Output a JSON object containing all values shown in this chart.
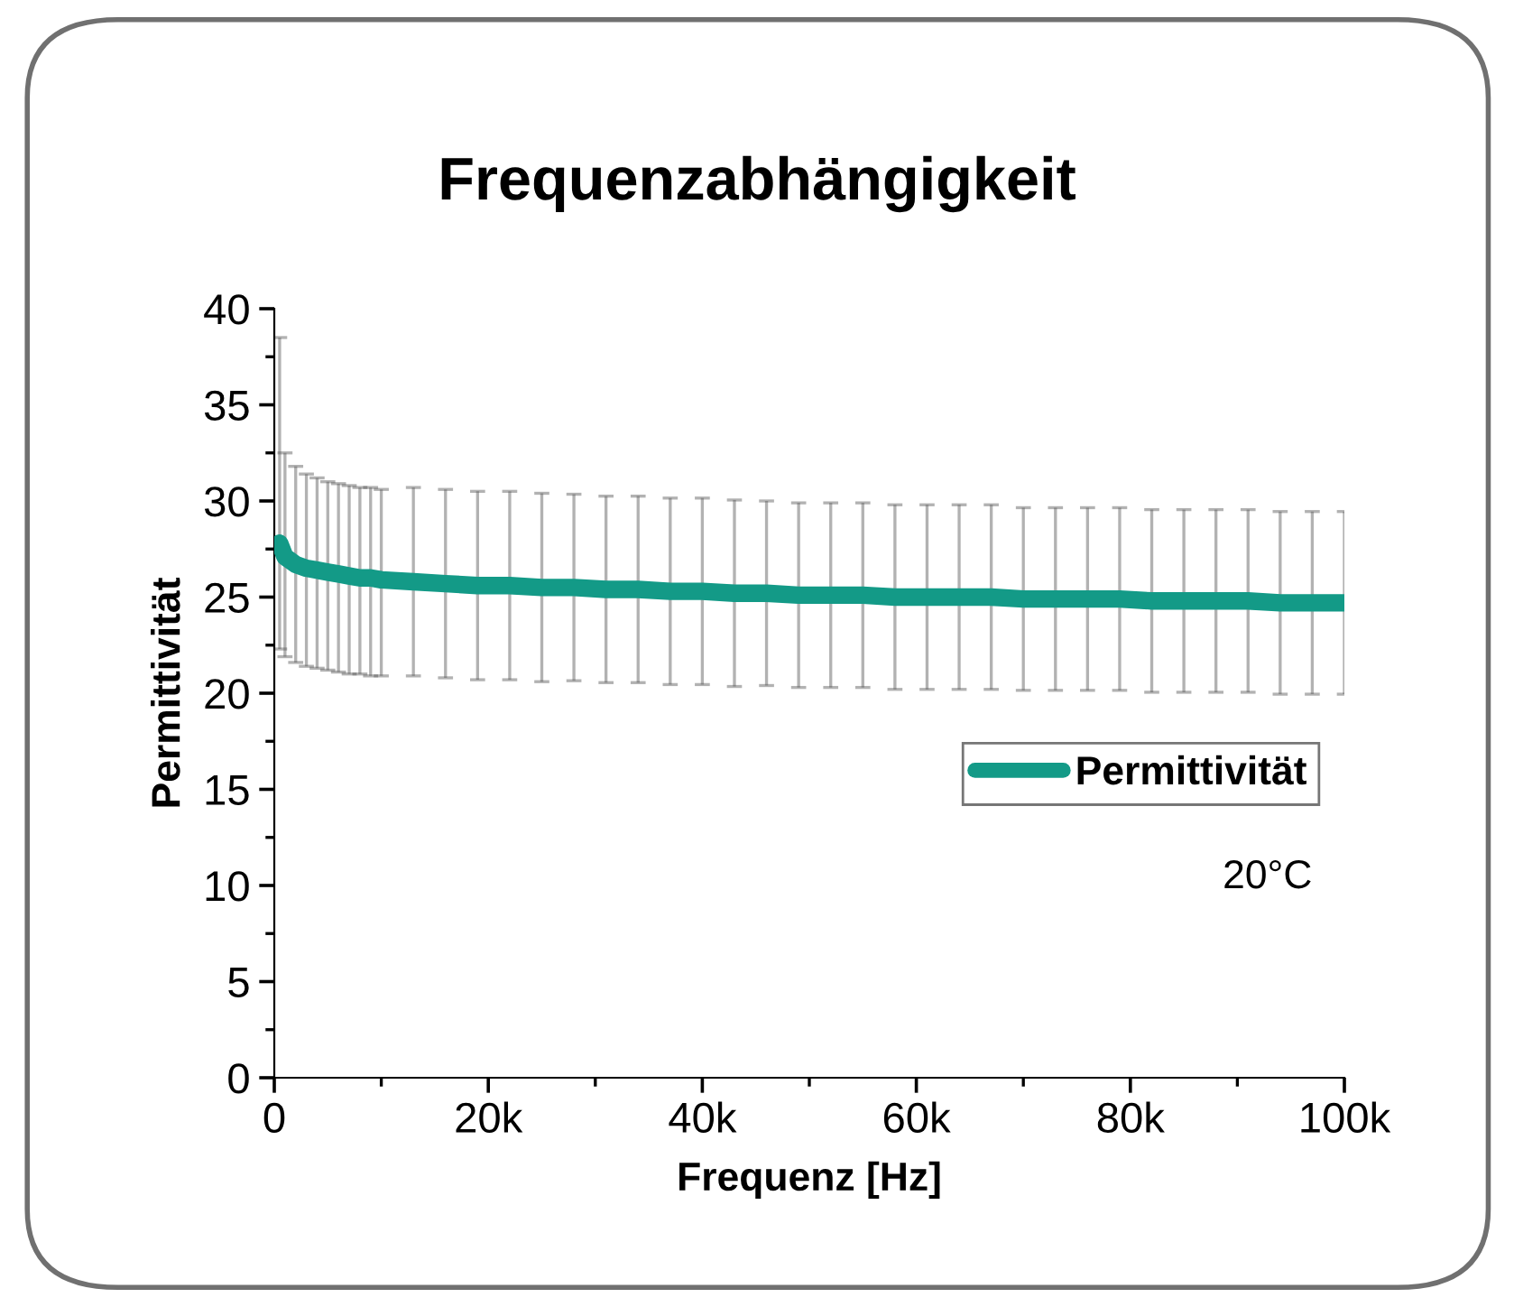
{
  "chart_data": {
    "type": "line",
    "title": "Frequenzabhängigkeit",
    "xlabel": "Frequenz [Hz]",
    "ylabel": "Permittivität",
    "annotations": [
      "20°C"
    ],
    "series": [
      {
        "name": "Permittivität",
        "color": "#139a87",
        "x": [
          500,
          1000,
          2000,
          3000,
          4000,
          5000,
          6000,
          7000,
          8000,
          9000,
          10000,
          13000,
          16000,
          19000,
          22000,
          25000,
          28000,
          31000,
          34000,
          37000,
          40000,
          43000,
          46000,
          49000,
          52000,
          55000,
          58000,
          61000,
          64000,
          67000,
          70000,
          73000,
          76000,
          79000,
          82000,
          85000,
          88000,
          91000,
          94000,
          97000,
          100000
        ],
        "values": [
          27.8,
          27.1,
          26.7,
          26.5,
          26.4,
          26.3,
          26.2,
          26.1,
          26.0,
          26.0,
          25.9,
          25.8,
          25.7,
          25.6,
          25.6,
          25.5,
          25.5,
          25.4,
          25.4,
          25.3,
          25.3,
          25.2,
          25.2,
          25.1,
          25.1,
          25.1,
          25.0,
          25.0,
          25.0,
          25.0,
          24.9,
          24.9,
          24.9,
          24.9,
          24.8,
          24.8,
          24.8,
          24.8,
          24.7,
          24.7,
          24.7
        ],
        "errors": [
          [
            22.3,
            38.5
          ],
          [
            21.9,
            32.5
          ],
          [
            21.6,
            31.8
          ],
          [
            21.4,
            31.4
          ],
          [
            21.3,
            31.2
          ],
          [
            21.2,
            31.0
          ],
          [
            21.1,
            30.9
          ],
          [
            21.0,
            30.8
          ],
          [
            21.0,
            30.7
          ],
          [
            20.9,
            30.7
          ],
          [
            20.9,
            30.6
          ],
          4.9,
          4.9,
          4.9,
          4.9,
          4.9,
          4.85,
          4.85,
          4.85,
          4.85,
          4.85,
          4.85,
          4.8,
          4.8,
          4.8,
          4.8,
          4.8,
          4.8,
          4.8,
          4.8,
          4.75,
          4.75,
          4.75,
          4.75,
          4.75,
          4.75,
          4.75,
          4.75,
          4.75,
          4.75,
          4.75
        ]
      }
    ],
    "xlim": [
      0,
      100000
    ],
    "xticks": [
      0,
      {
        "value": 20000,
        "label": "20k"
      },
      {
        "value": 40000,
        "label": "40k"
      },
      {
        "value": 60000,
        "label": "60k"
      },
      {
        "value": 80000,
        "label": "80k"
      },
      {
        "value": 100000,
        "label": "100k"
      }
    ],
    "ylim": [
      0,
      40
    ],
    "yticks": [
      0,
      5,
      10,
      15,
      20,
      25,
      30,
      35,
      40
    ],
    "legend": "right",
    "marker": "none",
    "line_style": "solid"
  }
}
